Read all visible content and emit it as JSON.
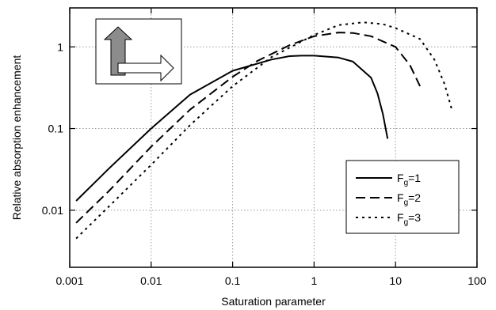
{
  "chart_data": {
    "type": "line",
    "xlabel": "Saturation parameter",
    "ylabel": "Relative absorption enhancement",
    "x_scale": "log",
    "y_scale": "log",
    "xlim": [
      0.001,
      100
    ],
    "ylim": [
      0.002,
      3
    ],
    "grid": true,
    "legend_position": "bottom-right",
    "x_ticks": [
      "0.001",
      "0.01",
      "0.1",
      "1",
      "10",
      "100"
    ],
    "y_ticks": [
      "0.01",
      "0.1",
      "1"
    ],
    "series": [
      {
        "name": "F",
        "sub": "g",
        "suffix": "=1",
        "dash": "solid",
        "points": [
          [
            0.0012,
            0.013
          ],
          [
            0.003,
            0.032
          ],
          [
            0.01,
            0.1
          ],
          [
            0.03,
            0.26
          ],
          [
            0.1,
            0.51
          ],
          [
            0.3,
            0.7
          ],
          [
            0.5,
            0.77
          ],
          [
            0.7,
            0.78
          ],
          [
            1,
            0.78
          ],
          [
            2,
            0.74
          ],
          [
            3,
            0.66
          ],
          [
            5,
            0.42
          ],
          [
            6,
            0.27
          ],
          [
            7,
            0.15
          ],
          [
            8,
            0.075
          ]
        ]
      },
      {
        "name": "F",
        "sub": "g",
        "suffix": "=2",
        "dash": "dash",
        "points": [
          [
            0.0012,
            0.007
          ],
          [
            0.003,
            0.017
          ],
          [
            0.01,
            0.06
          ],
          [
            0.03,
            0.17
          ],
          [
            0.1,
            0.43
          ],
          [
            0.2,
            0.67
          ],
          [
            0.5,
            1.05
          ],
          [
            1,
            1.35
          ],
          [
            2,
            1.5
          ],
          [
            3,
            1.48
          ],
          [
            5,
            1.35
          ],
          [
            10,
            1.0
          ],
          [
            15,
            0.6
          ],
          [
            20,
            0.33
          ]
        ]
      },
      {
        "name": "F",
        "sub": "g",
        "suffix": "=3",
        "dash": "dot",
        "points": [
          [
            0.0012,
            0.0045
          ],
          [
            0.003,
            0.011
          ],
          [
            0.01,
            0.036
          ],
          [
            0.03,
            0.11
          ],
          [
            0.1,
            0.33
          ],
          [
            0.3,
            0.75
          ],
          [
            1,
            1.4
          ],
          [
            2,
            1.85
          ],
          [
            4,
            2.0
          ],
          [
            7,
            1.9
          ],
          [
            10,
            1.7
          ],
          [
            20,
            1.25
          ],
          [
            30,
            0.7
          ],
          [
            40,
            0.35
          ],
          [
            50,
            0.16
          ]
        ]
      }
    ]
  }
}
